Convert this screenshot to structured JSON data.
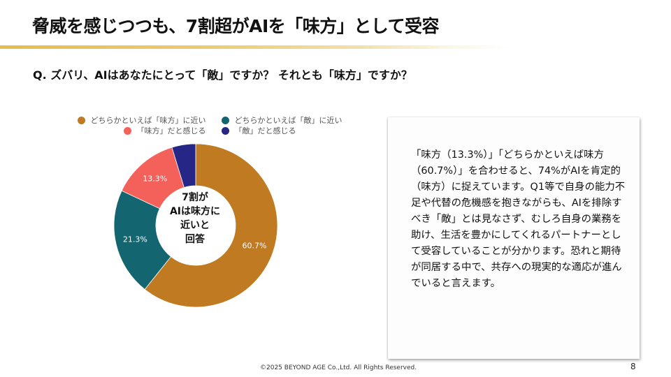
{
  "header": {
    "title": "脅威を感じつつも、7割超がAIを「味方」として受容"
  },
  "question": "Q. ズバリ、AIはあなたにとって「敵」ですか？ それとも「味方」ですか？",
  "legend": {
    "items": [
      {
        "label": "どちらかといえば「味方」に近い",
        "color": "#bf7a22"
      },
      {
        "label": "どちらかといえば「敵」に近い",
        "color": "#136570"
      },
      {
        "label": "「味方」だと感じる",
        "color": "#f4605a"
      },
      {
        "label": "「敵」だと感じる",
        "color": "#262686"
      }
    ]
  },
  "donut": {
    "labels": [
      "60.7%",
      "21.3%",
      "13.3%",
      ""
    ],
    "center_lines": [
      "7割が",
      "AIは味方に",
      "近いと",
      "回答"
    ]
  },
  "chart_data": {
    "type": "pie",
    "variant": "donut",
    "title": "",
    "categories": [
      "どちらかといえば「味方」に近い",
      "どちらかといえば「敵」に近い",
      "「味方」だと感じる",
      "「敵」だと感じる"
    ],
    "values": [
      60.7,
      21.3,
      13.3,
      4.7
    ],
    "value_labels": [
      "60.7%",
      "21.3%",
      "13.3%",
      ""
    ],
    "colors": [
      "#bf7a22",
      "#136570",
      "#f4605a",
      "#262686"
    ],
    "start_angle": "12 o'clock, clockwise",
    "legend_position": "top",
    "center_annotation": "7割が AIは味方に 近いと 回答"
  },
  "textbox": {
    "body": "「味方（13.3%）」「どちらかといえば味方（60.7%）」を合わせると、74%がAIを肯定的（味方）に捉えています。Q1等で自身の能力不足や代替の危機感を抱きながらも、AIを排除すべき「敵」とは見なさず、むしろ自身の業務を助け、生活を豊かにしてくれるパートナーとして受容していることが分かります。恐れと期待が同居する中で、共存への現実的な適応が進んでいると言えます。"
  },
  "footer": {
    "copyright": "©2025 BEYOND AGE Co.,Ltd. All Rights Reserved.",
    "page_number": "8"
  }
}
